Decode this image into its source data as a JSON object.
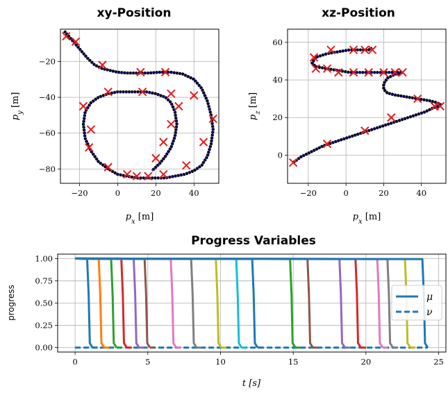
{
  "chart_data": [
    {
      "type": "line",
      "title": "xy-Position",
      "xlabel": "p_x [m]",
      "ylabel": "p_y [m]",
      "xlim": [
        -30,
        53
      ],
      "ylim": [
        -88,
        -2
      ],
      "xticks": [
        -20,
        0,
        20,
        40
      ],
      "yticks": [
        -20,
        -40,
        -60,
        -80
      ],
      "grid": true,
      "series": [
        {
          "role": "path",
          "color": "#1f1fb4",
          "x": [
            -28,
            -24,
            -20,
            -16,
            -12,
            -8,
            -4,
            0,
            5,
            10,
            16,
            22,
            28,
            34,
            40,
            44,
            47,
            49,
            50,
            49,
            47,
            44,
            40,
            35,
            30,
            25,
            20,
            15,
            10,
            5,
            0,
            -5,
            -10,
            -14,
            -17,
            -18,
            -17,
            -14,
            -10,
            -5,
            0,
            5,
            10,
            15,
            20,
            25,
            28,
            30,
            31,
            30,
            28,
            25,
            22,
            20,
            18
          ],
          "y": [
            -3,
            -8,
            -13,
            -18,
            -22,
            -24,
            -25,
            -26,
            -26.5,
            -26.5,
            -26.5,
            -26,
            -26,
            -27,
            -30,
            -35,
            -42,
            -50,
            -58,
            -66,
            -73,
            -78,
            -81,
            -83,
            -84,
            -85,
            -85,
            -85,
            -85,
            -84,
            -83,
            -80,
            -76,
            -70,
            -63,
            -55,
            -48,
            -43,
            -40,
            -38,
            -37,
            -37,
            -37,
            -37,
            -38,
            -40,
            -43,
            -48,
            -55,
            -62,
            -68,
            -73,
            -77,
            -79,
            -81
          ]
        }
      ],
      "markers": {
        "symbol": "x",
        "color": "#e31a1c",
        "x": [
          -27,
          -22,
          -8,
          12,
          25,
          40,
          50,
          45,
          36,
          24,
          16,
          10,
          5,
          -5,
          -15,
          -18,
          -14,
          -5,
          13,
          28,
          32,
          28,
          24,
          20
        ],
        "y": [
          -6,
          -9,
          -22,
          -26,
          -26,
          -39,
          -52,
          -65,
          -78,
          -83,
          -84,
          -84,
          -83,
          -79,
          -68,
          -45,
          -58,
          -37,
          -37,
          -38,
          -45,
          -55,
          -65,
          -74
        ]
      }
    },
    {
      "type": "line",
      "title": "xz-Position",
      "xlabel": "p_x [m]",
      "ylabel": "p_z [m]",
      "xlim": [
        -31,
        53
      ],
      "ylim": [
        -15,
        67
      ],
      "xticks": [
        -20,
        0,
        20,
        40
      ],
      "yticks": [
        0,
        20,
        40,
        60
      ],
      "grid": true,
      "series": [
        {
          "role": "path",
          "color": "#1f1fb4",
          "x": [
            -28,
            -24,
            -18,
            -12,
            -6,
            0,
            6,
            12,
            18,
            24,
            30,
            36,
            42,
            46,
            49,
            50,
            48,
            44,
            38,
            32,
            26,
            22,
            20,
            20,
            22,
            26,
            30,
            26,
            20,
            14,
            8,
            2,
            -4,
            -10,
            -16,
            -18,
            -16,
            -10,
            -4,
            2,
            8,
            12,
            14
          ],
          "y": [
            -4,
            -1,
            2,
            5,
            7,
            9,
            11,
            13,
            15,
            17,
            19,
            21,
            23,
            25,
            26,
            27,
            28,
            29,
            30,
            31,
            32,
            33,
            35,
            38,
            41,
            43,
            44,
            44,
            44,
            44,
            44,
            44,
            45,
            46,
            47,
            49,
            52,
            54,
            55,
            56,
            56,
            56,
            57
          ]
        }
      ],
      "markers": {
        "symbol": "x",
        "color": "#e31a1c",
        "x": [
          -28,
          -10,
          10,
          24,
          38,
          47,
          50,
          30,
          26,
          20,
          12,
          4,
          -4,
          -10,
          -16,
          -17,
          -8,
          4,
          10,
          14
        ],
        "y": [
          -4,
          6,
          13,
          20,
          30,
          26,
          26,
          44,
          44,
          44,
          44,
          44,
          44,
          46,
          46,
          52,
          56,
          56,
          56,
          56
        ]
      }
    },
    {
      "type": "line",
      "title": "Progress Variables",
      "xlabel": "t [s]",
      "ylabel": "progress",
      "xlim": [
        -1.2,
        25.5
      ],
      "ylim": [
        -0.05,
        1.05
      ],
      "xticks": [
        0,
        5,
        10,
        15,
        20,
        25
      ],
      "yticks": [
        0.0,
        0.25,
        0.5,
        0.75,
        1.0
      ],
      "ytick_labels": [
        "0.00",
        "0.25",
        "0.50",
        "0.75",
        "1.00"
      ],
      "grid": true,
      "legend": {
        "placement": "right",
        "entries": [
          {
            "label": "μ",
            "style": "solid"
          },
          {
            "label": "ν",
            "style": "dashed"
          }
        ]
      },
      "steps": {
        "t_end": 24.2,
        "drops": [
          0.95,
          1.75,
          2.6,
          3.3,
          4.15,
          4.9,
          6.7,
          8.1,
          9.8,
          11.2,
          12.3,
          14.9,
          16.1,
          18.3,
          19.4,
          20.9,
          21.6,
          22.8,
          24.0
        ],
        "colors": [
          "#1f77b4",
          "#ff7f0e",
          "#2ca02c",
          "#d62728",
          "#9467bd",
          "#8c564b",
          "#e377c2",
          "#7f7f7f",
          "#bcbd22",
          "#17becf",
          "#1f77b4",
          "#2ca02c",
          "#8c564b",
          "#9467bd",
          "#d62728",
          "#e377c2",
          "#7f7f7f",
          "#bcbd22",
          "#1f77b4"
        ]
      }
    }
  ]
}
